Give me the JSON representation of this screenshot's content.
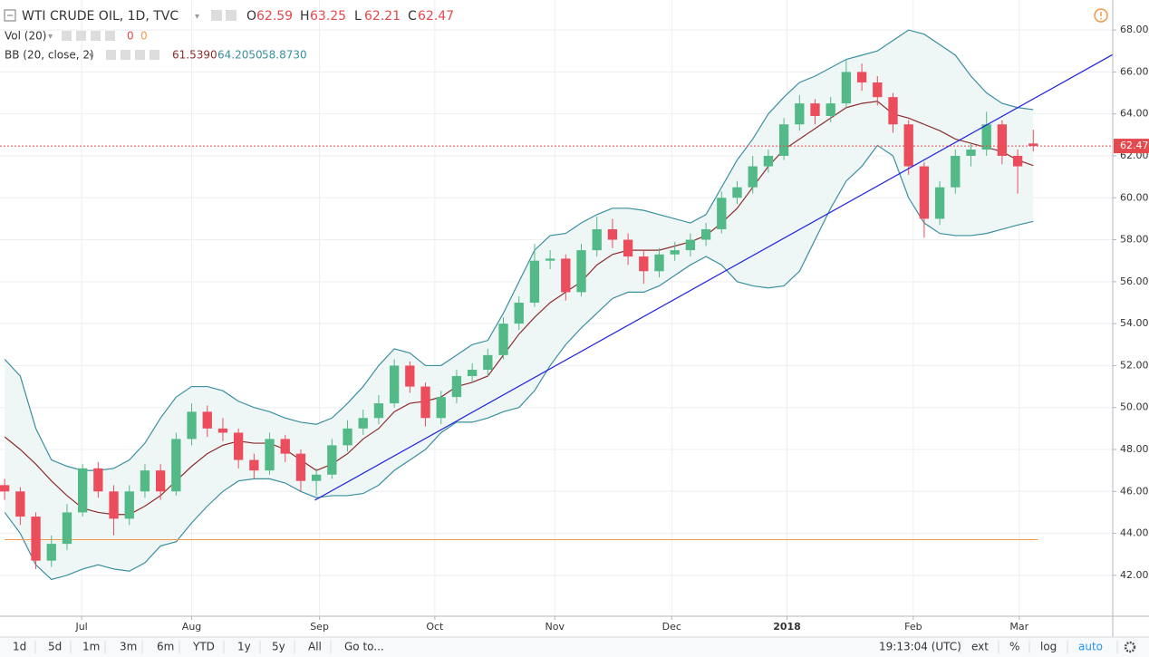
{
  "chart_data": {
    "type": "candlestick",
    "title": "WTI CRUDE OIL, 1D, TVC",
    "ohlc_legend": [
      {
        "label": "O",
        "value": 62.59
      },
      {
        "label": "H",
        "value": 63.25
      },
      {
        "label": "L",
        "value": 62.21
      },
      {
        "label": "C",
        "value": 62.47
      }
    ],
    "volume_legend": {
      "label": "Vol (20)",
      "values": [
        0,
        0
      ]
    },
    "bb_legend": {
      "label": "BB (20, close, 2)",
      "values": [
        {
          "value": 61.539,
          "label": "61.5390"
        },
        {
          "value": 64.205,
          "label": "64.2050"
        },
        {
          "value": 58.873,
          "label": "58.8730"
        }
      ]
    },
    "x": [
      0,
      1,
      2,
      3,
      4,
      5,
      6,
      7,
      8,
      9,
      10,
      11,
      12,
      13,
      14,
      15,
      16,
      17,
      18,
      19,
      20,
      21,
      22,
      23,
      24,
      25,
      26,
      27,
      28,
      29,
      30,
      31,
      32,
      33,
      34,
      35,
      36,
      37,
      38,
      39,
      40,
      41,
      42,
      43,
      44,
      45,
      46,
      47,
      48,
      49,
      50,
      51,
      52,
      53,
      54,
      55,
      56,
      57,
      58,
      59,
      60,
      61,
      62,
      63,
      64,
      65,
      66
    ],
    "open": [
      46.3,
      46.0,
      44.8,
      42.7,
      43.5,
      45.0,
      47.1,
      46.0,
      44.7,
      46.0,
      47.0,
      46.0,
      48.5,
      49.8,
      49.0,
      48.8,
      47.5,
      47.0,
      48.5,
      47.8,
      46.5,
      46.8,
      48.2,
      49.0,
      49.5,
      50.2,
      52.0,
      51.0,
      49.5,
      50.5,
      51.5,
      51.8,
      52.5,
      54.0,
      55.0,
      57.0,
      57.1,
      55.5,
      57.5,
      58.5,
      58.0,
      57.2,
      56.5,
      57.3,
      57.5,
      58.0,
      58.5,
      60.0,
      60.5,
      61.5,
      62.0,
      63.5,
      64.5,
      63.9,
      64.5,
      66.0,
      65.5,
      64.8,
      63.5,
      61.5,
      59.0,
      60.5,
      62.0,
      62.3,
      63.5,
      62.0,
      62.59
    ],
    "high": [
      46.6,
      46.2,
      45.0,
      43.9,
      45.4,
      47.3,
      47.4,
      46.3,
      46.3,
      47.3,
      47.3,
      48.8,
      50.2,
      50.1,
      49.5,
      49.0,
      47.8,
      48.8,
      48.7,
      48.0,
      47.1,
      48.5,
      49.4,
      49.9,
      50.6,
      52.3,
      52.2,
      51.2,
      50.8,
      51.8,
      52.1,
      52.8,
      54.3,
      55.3,
      57.8,
      57.5,
      57.3,
      57.8,
      59.1,
      59.0,
      58.3,
      57.5,
      57.6,
      57.9,
      58.3,
      58.8,
      60.3,
      60.8,
      62.0,
      62.3,
      63.8,
      64.9,
      64.7,
      64.8,
      66.6,
      66.4,
      65.8,
      65.0,
      63.7,
      61.7,
      60.8,
      62.3,
      62.6,
      64.1,
      63.7,
      62.3,
      63.25
    ],
    "low": [
      45.6,
      44.4,
      42.3,
      42.4,
      43.2,
      44.8,
      45.7,
      43.9,
      44.4,
      45.7,
      45.6,
      45.8,
      48.2,
      48.6,
      48.4,
      47.1,
      46.6,
      46.8,
      47.4,
      46.0,
      45.8,
      46.6,
      47.9,
      48.7,
      49.2,
      50.0,
      50.7,
      49.1,
      49.2,
      50.2,
      51.2,
      51.5,
      52.3,
      53.7,
      54.8,
      56.6,
      55.1,
      55.3,
      57.2,
      57.6,
      56.8,
      55.9,
      56.2,
      57.0,
      57.2,
      57.7,
      58.3,
      59.7,
      60.2,
      61.2,
      61.8,
      63.2,
      63.5,
      63.6,
      64.3,
      65.1,
      64.4,
      63.1,
      61.1,
      58.1,
      58.7,
      60.2,
      61.5,
      62.0,
      61.6,
      60.2,
      62.21
    ],
    "close": [
      46.0,
      44.8,
      42.7,
      43.5,
      45.0,
      47.1,
      46.0,
      44.7,
      46.0,
      47.0,
      46.0,
      48.5,
      49.8,
      49.0,
      48.8,
      47.5,
      47.0,
      48.5,
      47.8,
      46.5,
      46.8,
      48.2,
      49.0,
      49.5,
      50.2,
      52.0,
      51.0,
      49.5,
      50.5,
      51.5,
      51.8,
      52.5,
      54.0,
      55.0,
      57.0,
      57.1,
      55.5,
      57.5,
      58.5,
      58.0,
      57.2,
      56.5,
      57.3,
      57.5,
      58.0,
      58.5,
      60.0,
      60.5,
      61.5,
      62.0,
      63.5,
      64.5,
      63.9,
      64.5,
      66.0,
      65.5,
      64.8,
      63.5,
      61.5,
      59.0,
      60.5,
      62.0,
      62.3,
      63.5,
      62.0,
      61.5,
      62.47
    ],
    "up_color": "#53b987",
    "down_color": "#eb4d5c",
    "bb_upper": [
      52.3,
      51.5,
      49.0,
      47.5,
      47.2,
      47.0,
      47.0,
      47.1,
      47.5,
      48.3,
      49.5,
      50.5,
      51.0,
      51.0,
      50.8,
      50.3,
      50.0,
      49.8,
      49.5,
      49.3,
      49.2,
      49.5,
      50.2,
      51.0,
      52.0,
      52.8,
      52.6,
      52.0,
      52.0,
      52.5,
      53.0,
      53.2,
      54.5,
      56.0,
      57.5,
      58.2,
      58.3,
      58.8,
      59.2,
      59.5,
      59.5,
      59.4,
      59.2,
      59.0,
      58.8,
      59.2,
      60.5,
      61.8,
      62.8,
      64.0,
      64.8,
      65.5,
      65.8,
      66.2,
      66.6,
      66.8,
      67.0,
      67.5,
      68.0,
      67.8,
      67.3,
      66.8,
      65.8,
      65.0,
      64.5,
      64.3,
      64.205
    ],
    "bb_basis": [
      48.6,
      48.0,
      47.3,
      46.5,
      45.8,
      45.2,
      45.0,
      44.9,
      44.9,
      45.3,
      45.8,
      46.5,
      47.2,
      47.8,
      48.2,
      48.4,
      48.3,
      48.3,
      48.0,
      47.5,
      47.0,
      47.3,
      47.8,
      48.5,
      49.0,
      49.8,
      50.2,
      50.3,
      50.5,
      51.0,
      51.2,
      51.5,
      52.5,
      53.5,
      54.3,
      55.0,
      55.5,
      56.0,
      56.8,
      57.3,
      57.5,
      57.5,
      57.5,
      57.7,
      57.9,
      58.2,
      58.8,
      59.5,
      60.5,
      61.5,
      62.3,
      62.8,
      63.3,
      63.8,
      64.3,
      64.5,
      64.6,
      64.0,
      63.8,
      63.5,
      63.2,
      62.8,
      62.6,
      62.4,
      62.2,
      61.8,
      61.539
    ],
    "bb_lower": [
      45.0,
      44.0,
      42.5,
      41.8,
      42.0,
      42.3,
      42.5,
      42.3,
      42.2,
      42.6,
      43.4,
      43.6,
      44.5,
      45.3,
      46.0,
      46.5,
      46.6,
      46.6,
      46.4,
      46.0,
      45.7,
      45.8,
      45.8,
      45.9,
      46.3,
      47.0,
      47.5,
      48.0,
      48.8,
      49.3,
      49.3,
      49.5,
      49.8,
      50.0,
      50.8,
      52.0,
      53.0,
      53.8,
      54.5,
      55.2,
      55.5,
      55.5,
      55.8,
      56.3,
      56.8,
      57.2,
      56.8,
      56.0,
      55.8,
      55.7,
      55.8,
      56.5,
      58.0,
      59.5,
      60.8,
      61.5,
      62.5,
      62.0,
      60.0,
      58.8,
      58.3,
      58.2,
      58.2,
      58.3,
      58.5,
      58.7,
      58.873
    ],
    "band_color": "#3a8fa0",
    "basis_color": "#8e2c2c",
    "band_fill": "#eef7f6",
    "trendline": {
      "x": [
        19.9,
        71.1
      ],
      "values": [
        45.58,
        66.83
      ],
      "color": "#1f1fe0"
    },
    "hline": {
      "x": [
        0,
        66.3
      ],
      "value": 43.7,
      "color": "#f2994a"
    },
    "last_price": 62.47,
    "last_price_color": "#e5484d",
    "xlim": [
      -0.3,
      71.1
    ],
    "ylim": [
      40.05,
      69.43
    ],
    "xticks": [
      {
        "value": 4.94,
        "label": "Jul"
      },
      {
        "value": 12.0,
        "label": "Aug"
      },
      {
        "value": 20.2,
        "label": "Sep"
      },
      {
        "value": 27.6,
        "label": "Oct"
      },
      {
        "value": 35.3,
        "label": "Nov"
      },
      {
        "value": 42.8,
        "label": "Dec"
      },
      {
        "value": 50.2,
        "label": "2018"
      },
      {
        "value": 58.3,
        "label": "Feb"
      },
      {
        "value": 65.1,
        "label": "Mar"
      }
    ],
    "yticks": [
      {
        "value": 42,
        "label": "42.00"
      },
      {
        "value": 44,
        "label": "44.00"
      },
      {
        "value": 46,
        "label": "46.00"
      },
      {
        "value": 48,
        "label": "48.00"
      },
      {
        "value": 50,
        "label": "50.00"
      },
      {
        "value": 52,
        "label": "52.00"
      },
      {
        "value": 54,
        "label": "54.00"
      },
      {
        "value": 56,
        "label": "56.00"
      },
      {
        "value": 58,
        "label": "58.00"
      },
      {
        "value": 60,
        "label": "60.00"
      },
      {
        "value": 62,
        "label": "62.00"
      },
      {
        "value": 64,
        "label": "64.00"
      },
      {
        "value": 66,
        "label": "66.00"
      },
      {
        "value": 68,
        "label": "68.00"
      }
    ],
    "grid": true
  },
  "toolbar": {
    "ranges": [
      "1d",
      "5d",
      "1m",
      "3m",
      "6m",
      "YTD",
      "1y",
      "5y",
      "All"
    ],
    "goto": "Go to...",
    "time": "19:13:04 (UTC)",
    "options": [
      "ext",
      "%",
      "log",
      "auto"
    ]
  }
}
